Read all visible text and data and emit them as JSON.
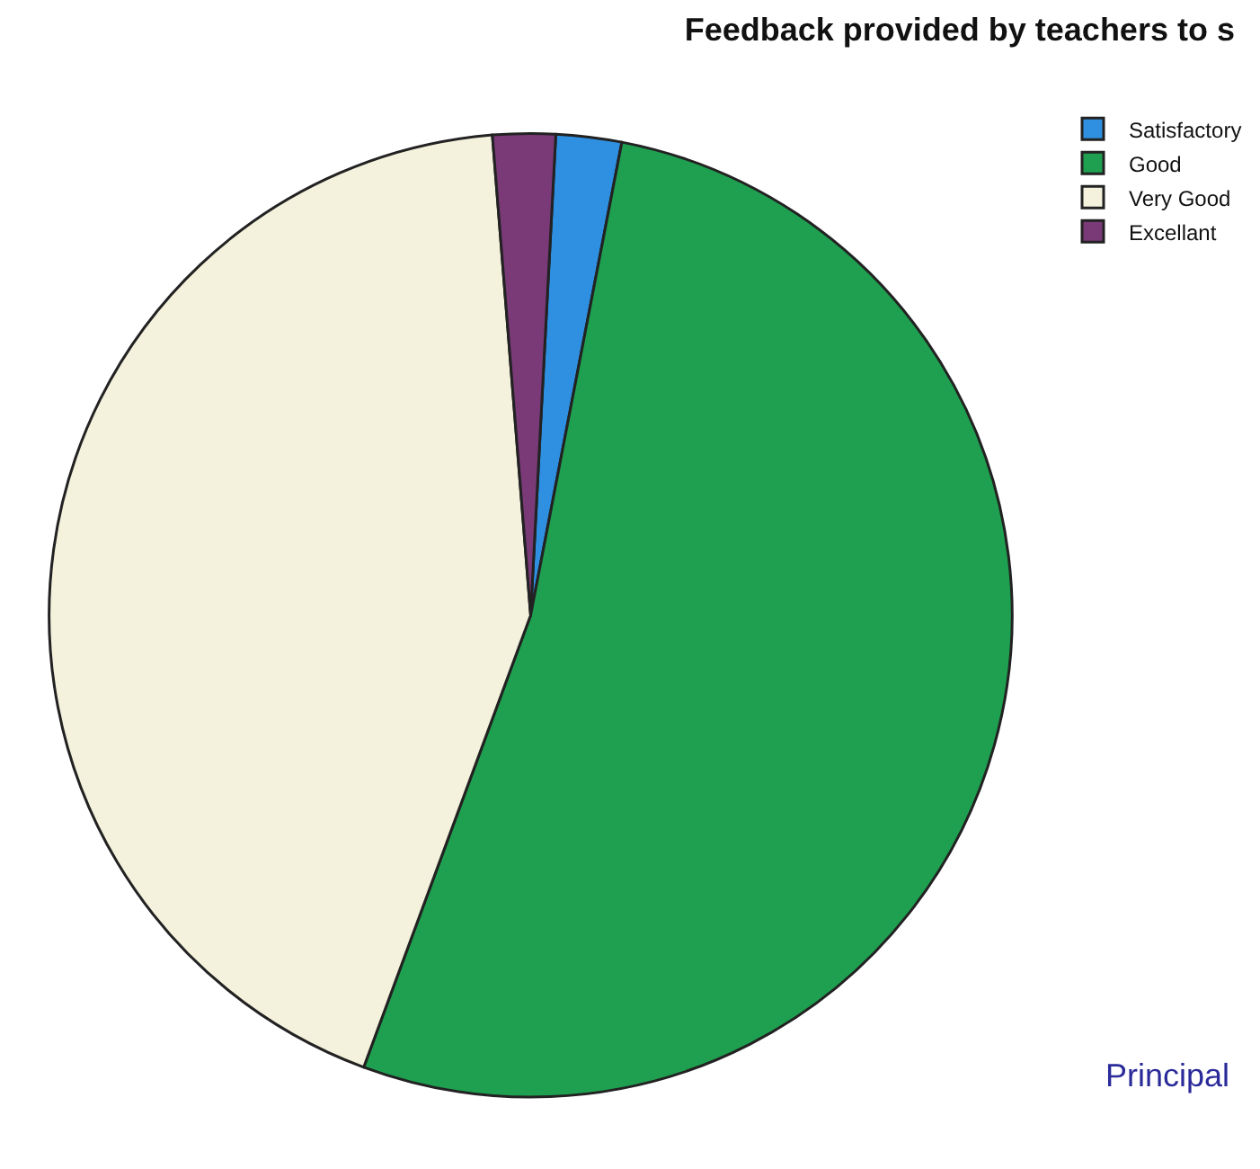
{
  "chart_data": {
    "type": "pie",
    "title": "Feedback provided by teachers to s",
    "categories": [
      "Satisfactory",
      "Good",
      "Very Good",
      "Excellant"
    ],
    "values": [
      2.2,
      52.6,
      43.1,
      2.1
    ],
    "colors": [
      "#2f8fe0",
      "#1fa050",
      "#f4f1dc",
      "#7a3a78"
    ],
    "legend": "top right",
    "annotations": [
      "Principal"
    ]
  }
}
